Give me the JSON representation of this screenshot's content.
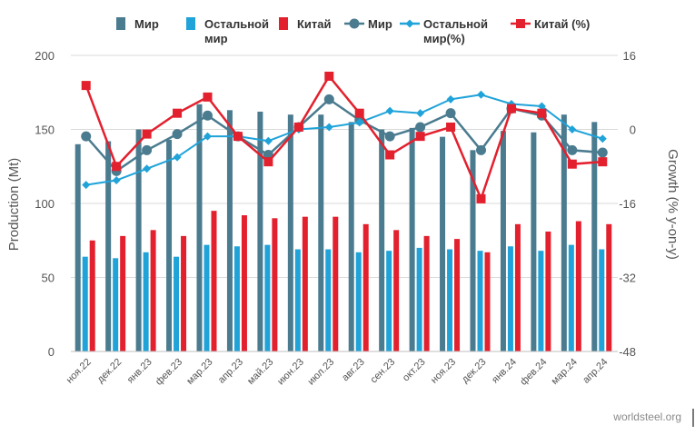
{
  "legend": {
    "items": [
      {
        "label": "Мир",
        "symbol": "bar",
        "color": "#4a7b8f"
      },
      {
        "label": "Остальной мир",
        "symbol": "bar",
        "color": "#1fa3d9"
      },
      {
        "label": "Китай",
        "symbol": "bar",
        "color": "#e3202e"
      },
      {
        "label": "Мир",
        "symbol": "line-circle",
        "color": "#4a7b8f"
      },
      {
        "label": "Остальной мир(%)",
        "symbol": "line-diamond",
        "color": "#1fa3d9"
      },
      {
        "label": "Китай (%)",
        "symbol": "line-square",
        "color": "#e3202e"
      }
    ]
  },
  "source": "worldsteel.org",
  "chart_data": {
    "type": "bar",
    "ylabel": "Production (Mt)",
    "y2label": "Growth (% y-on-y)",
    "ylim": [
      0,
      200
    ],
    "y2lim": [
      -48,
      16
    ],
    "yticks": [
      0,
      50,
      100,
      150,
      200
    ],
    "y2ticks": [
      -48,
      -32,
      -16,
      0,
      16
    ],
    "y2tick_labels": [
      "-48",
      "-32",
      "-16",
      "0",
      "16"
    ],
    "categories": [
      "ноя.22",
      "дек.22",
      "янв.23",
      "фев.23",
      "мар.23",
      "апр.23",
      "май.23",
      "июн.23",
      "июл.23",
      "авг.23",
      "сен.23",
      "окт.23",
      "ноя.23",
      "дек.23",
      "янв.24",
      "фев.24",
      "мар.24",
      "апр.24"
    ],
    "bar_series": [
      {
        "name": "Мир",
        "color": "#4a7b8f",
        "values": [
          140,
          142,
          150,
          143,
          167,
          163,
          162,
          160,
          160,
          155,
          150,
          151,
          145,
          136,
          149,
          148,
          160,
          155
        ]
      },
      {
        "name": "Остальной мир",
        "color": "#1fa3d9",
        "values": [
          64,
          63,
          67,
          64,
          72,
          71,
          72,
          69,
          69,
          67,
          68,
          70,
          69,
          68,
          71,
          68,
          72,
          69
        ]
      },
      {
        "name": "Китай",
        "color": "#e3202e",
        "values": [
          75,
          78,
          82,
          78,
          95,
          92,
          90,
          91,
          91,
          86,
          82,
          78,
          76,
          67,
          86,
          81,
          88,
          86
        ]
      }
    ],
    "line_series": [
      {
        "name": "Мир",
        "color": "#4a7b8f",
        "marker": "circle",
        "values": [
          -1.5,
          -9,
          -4.5,
          -1,
          3,
          -1.5,
          -5.5,
          0.5,
          6.5,
          2,
          -1.5,
          0.5,
          3.5,
          -4.5,
          4.5,
          3,
          -4.5,
          -5
        ]
      },
      {
        "name": "Остальной мир(%)",
        "color": "#1fa3d9",
        "marker": "diamond",
        "values": [
          -12,
          -11,
          -8.5,
          -6,
          -1.5,
          -1.5,
          -2.5,
          0,
          0.5,
          1.5,
          4,
          3.5,
          6.5,
          7.5,
          5.5,
          5,
          0,
          -2
        ]
      },
      {
        "name": "Китай (%)",
        "color": "#e3202e",
        "marker": "square",
        "values": [
          9.5,
          -8,
          -1,
          3.5,
          7,
          -1.5,
          -7,
          0.5,
          11.5,
          3.5,
          -5.5,
          -1.5,
          0.5,
          -15,
          4.5,
          3.5,
          -7.5,
          -7
        ]
      }
    ]
  }
}
